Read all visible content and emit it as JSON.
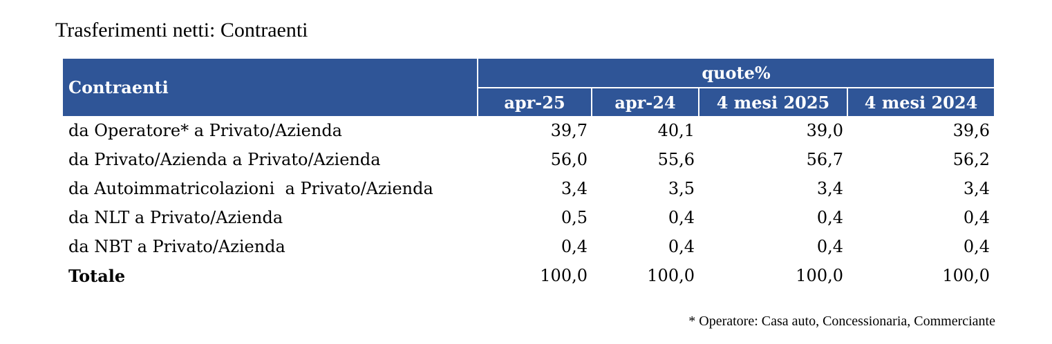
{
  "title": "Trasferimenti netti: Contraenti",
  "table": {
    "row_header": "Contraenti",
    "group_header": "quote%",
    "columns": [
      "apr-25",
      "apr-24",
      "4 mesi 2025",
      "4 mesi 2024"
    ],
    "rows": [
      {
        "label": "da Operatore* a Privato/Azienda",
        "values": [
          "39,7",
          "40,1",
          "39,0",
          "39,6"
        ]
      },
      {
        "label": "da Privato/Azienda a Privato/Azienda",
        "values": [
          "56,0",
          "55,6",
          "56,7",
          "56,2"
        ]
      },
      {
        "label": "da Autoimmatricolazioni  a Privato/Azienda",
        "values": [
          "3,4",
          "3,5",
          "3,4",
          "3,4"
        ]
      },
      {
        "label": "da NLT a Privato/Azienda",
        "values": [
          "0,5",
          "0,4",
          "0,4",
          "0,4"
        ]
      },
      {
        "label": "da NBT a Privato/Azienda",
        "values": [
          "0,4",
          "0,4",
          "0,4",
          "0,4"
        ]
      },
      {
        "label": "Totale",
        "values": [
          "100,0",
          "100,0",
          "100,0",
          "100,0"
        ]
      }
    ]
  },
  "footnote": "* Operatore: Casa auto, Concessionaria, Commerciante",
  "colors": {
    "header_bg": "#2f5597",
    "header_text": "#ffffff"
  }
}
